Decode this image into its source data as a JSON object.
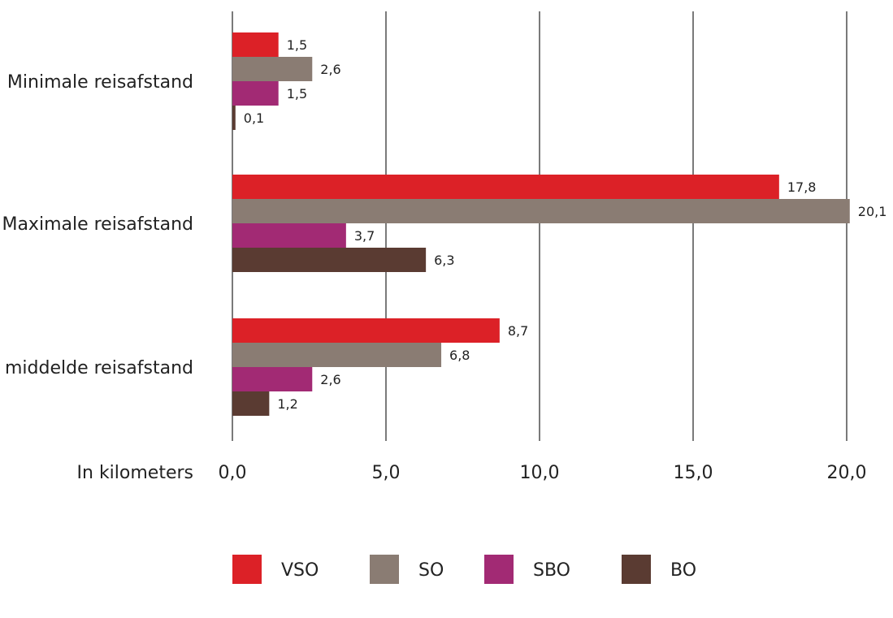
{
  "chart_data": {
    "type": "bar",
    "orientation": "horizontal",
    "categories": [
      "Minimale reisafstand",
      "Maximale reisafstand",
      "middelde reisafstand"
    ],
    "series": [
      {
        "name": "VSO",
        "values": [
          1.5,
          17.8,
          8.7
        ],
        "labels": [
          "1,5",
          "17,8",
          "8,7"
        ],
        "color": "#dc2127"
      },
      {
        "name": "SO",
        "values": [
          2.6,
          20.1,
          6.8
        ],
        "labels": [
          "2,6",
          "20,1",
          "6,8"
        ],
        "color": "#8a7c73"
      },
      {
        "name": "SBO",
        "values": [
          1.5,
          3.7,
          2.6
        ],
        "labels": [
          "1,5",
          "3,7",
          "2,6"
        ],
        "color": "#a22a74"
      },
      {
        "name": "BO",
        "values": [
          0.1,
          6.3,
          1.2
        ],
        "labels": [
          "0,1",
          "6,3",
          "1,2"
        ],
        "color": "#5a3b32"
      }
    ],
    "xlabel": "In kilometers",
    "xlim": [
      0,
      20
    ],
    "xticks": [
      0,
      5,
      10,
      15,
      20
    ],
    "xtick_labels": [
      "0,0",
      "5,0",
      "10,0",
      "15,0",
      "20,0"
    ],
    "grid": "vertical",
    "legend_position": "bottom"
  }
}
